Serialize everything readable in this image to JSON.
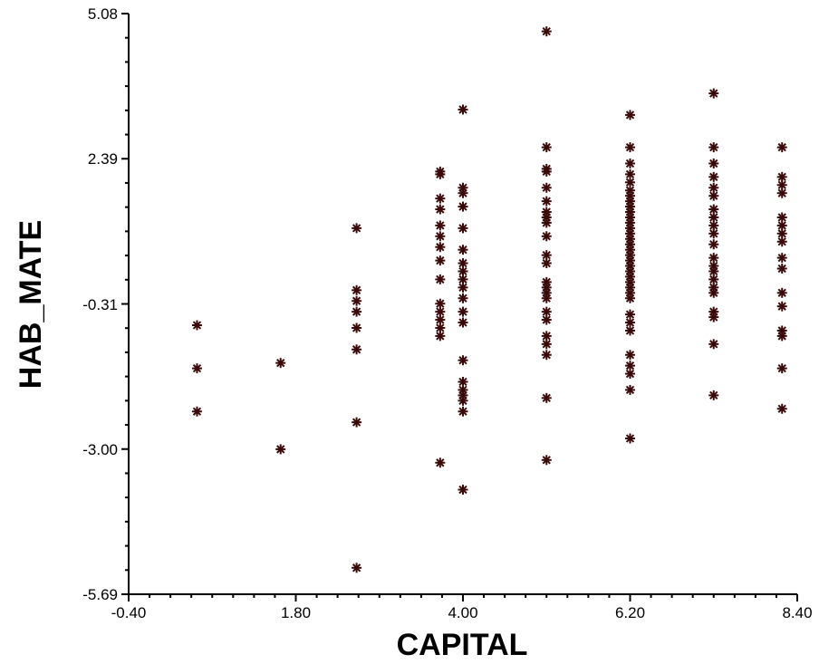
{
  "chart_data": {
    "type": "scatter",
    "xlabel": "CAPITAL",
    "ylabel": "HAB_MATE",
    "xlim": [
      -0.4,
      8.4
    ],
    "ylim": [
      -5.69,
      5.08
    ],
    "x_ticks": [
      "-0.40",
      "1.80",
      "4.00",
      "6.20",
      "8.40"
    ],
    "y_ticks": [
      "5.08",
      "2.39",
      "-0.31",
      "-3.00",
      "-5.69"
    ],
    "grid": false,
    "marker": "asterisk",
    "marker_color": "#3a0a0a",
    "points": [
      [
        0.5,
        -0.7
      ],
      [
        0.5,
        -1.5
      ],
      [
        0.5,
        -2.3
      ],
      [
        1.6,
        -1.4
      ],
      [
        1.6,
        -3.0
      ],
      [
        2.6,
        1.1
      ],
      [
        2.6,
        -0.05
      ],
      [
        2.6,
        -0.25
      ],
      [
        2.6,
        -0.45
      ],
      [
        2.6,
        -0.75
      ],
      [
        2.6,
        -1.15
      ],
      [
        2.6,
        -2.5
      ],
      [
        2.6,
        -5.2
      ],
      [
        3.7,
        2.15
      ],
      [
        3.7,
        2.1
      ],
      [
        3.7,
        1.65
      ],
      [
        3.7,
        1.45
      ],
      [
        3.7,
        1.15
      ],
      [
        3.7,
        0.95
      ],
      [
        3.7,
        0.75
      ],
      [
        3.7,
        0.5
      ],
      [
        3.7,
        0.15
      ],
      [
        3.7,
        -0.3
      ],
      [
        3.7,
        -0.45
      ],
      [
        3.7,
        -0.6
      ],
      [
        3.7,
        -0.75
      ],
      [
        3.7,
        -0.9
      ],
      [
        3.7,
        -3.25
      ],
      [
        4.0,
        3.3
      ],
      [
        4.0,
        1.85
      ],
      [
        4.0,
        1.75
      ],
      [
        4.0,
        1.5
      ],
      [
        4.0,
        1.1
      ],
      [
        4.0,
        0.7
      ],
      [
        4.0,
        0.45
      ],
      [
        4.0,
        0.3
      ],
      [
        4.0,
        0.15
      ],
      [
        4.0,
        0.0
      ],
      [
        4.0,
        -0.2
      ],
      [
        4.0,
        -0.45
      ],
      [
        4.0,
        -0.65
      ],
      [
        4.0,
        -1.35
      ],
      [
        4.0,
        -1.75
      ],
      [
        4.0,
        -1.9
      ],
      [
        4.0,
        -2.0
      ],
      [
        4.0,
        -2.1
      ],
      [
        4.0,
        -2.3
      ],
      [
        4.0,
        -3.75
      ],
      [
        5.1,
        4.75
      ],
      [
        5.1,
        2.6
      ],
      [
        5.1,
        2.2
      ],
      [
        5.1,
        2.15
      ],
      [
        5.1,
        1.85
      ],
      [
        5.1,
        1.6
      ],
      [
        5.1,
        1.4
      ],
      [
        5.1,
        1.3
      ],
      [
        5.1,
        1.2
      ],
      [
        5.1,
        0.95
      ],
      [
        5.1,
        0.6
      ],
      [
        5.1,
        0.45
      ],
      [
        5.1,
        0.1
      ],
      [
        5.1,
        0.0
      ],
      [
        5.1,
        -0.1
      ],
      [
        5.1,
        -0.2
      ],
      [
        5.1,
        -0.45
      ],
      [
        5.1,
        -0.6
      ],
      [
        5.1,
        -0.9
      ],
      [
        5.1,
        -1.05
      ],
      [
        5.1,
        -1.25
      ],
      [
        5.1,
        -2.05
      ],
      [
        5.1,
        -3.2
      ],
      [
        6.2,
        3.2
      ],
      [
        6.2,
        2.6
      ],
      [
        6.2,
        2.3
      ],
      [
        6.2,
        2.1
      ],
      [
        6.2,
        1.95
      ],
      [
        6.2,
        1.8
      ],
      [
        6.2,
        1.7
      ],
      [
        6.2,
        1.6
      ],
      [
        6.2,
        1.5
      ],
      [
        6.2,
        1.4
      ],
      [
        6.2,
        1.3
      ],
      [
        6.2,
        1.2
      ],
      [
        6.2,
        1.1
      ],
      [
        6.2,
        1.0
      ],
      [
        6.2,
        0.9
      ],
      [
        6.2,
        0.8
      ],
      [
        6.2,
        0.7
      ],
      [
        6.2,
        0.6
      ],
      [
        6.2,
        0.5
      ],
      [
        6.2,
        0.4
      ],
      [
        6.2,
        0.3
      ],
      [
        6.2,
        0.2
      ],
      [
        6.2,
        0.1
      ],
      [
        6.2,
        0.0
      ],
      [
        6.2,
        -0.1
      ],
      [
        6.2,
        -0.2
      ],
      [
        6.2,
        -0.5
      ],
      [
        6.2,
        -0.65
      ],
      [
        6.2,
        -0.8
      ],
      [
        6.2,
        -1.25
      ],
      [
        6.2,
        -1.45
      ],
      [
        6.2,
        -1.6
      ],
      [
        6.2,
        -1.9
      ],
      [
        6.2,
        -2.8
      ],
      [
        7.3,
        3.6
      ],
      [
        7.3,
        2.6
      ],
      [
        7.3,
        2.3
      ],
      [
        7.3,
        2.05
      ],
      [
        7.3,
        1.85
      ],
      [
        7.3,
        1.7
      ],
      [
        7.3,
        1.45
      ],
      [
        7.3,
        1.3
      ],
      [
        7.3,
        1.15
      ],
      [
        7.3,
        1.0
      ],
      [
        7.3,
        0.8
      ],
      [
        7.3,
        0.55
      ],
      [
        7.3,
        0.4
      ],
      [
        7.3,
        0.3
      ],
      [
        7.3,
        0.15
      ],
      [
        7.3,
        0.0
      ],
      [
        7.3,
        -0.1
      ],
      [
        7.3,
        -0.45
      ],
      [
        7.3,
        -0.55
      ],
      [
        7.3,
        -1.05
      ],
      [
        7.3,
        -2.0
      ],
      [
        8.2,
        2.6
      ],
      [
        8.2,
        2.05
      ],
      [
        8.2,
        1.9
      ],
      [
        8.2,
        1.75
      ],
      [
        8.2,
        1.3
      ],
      [
        8.2,
        1.15
      ],
      [
        8.2,
        1.0
      ],
      [
        8.2,
        0.85
      ],
      [
        8.2,
        0.55
      ],
      [
        8.2,
        0.35
      ],
      [
        8.2,
        -0.1
      ],
      [
        8.2,
        -0.35
      ],
      [
        8.2,
        -0.8
      ],
      [
        8.2,
        -0.9
      ],
      [
        8.2,
        -1.5
      ],
      [
        8.2,
        -2.25
      ]
    ]
  }
}
